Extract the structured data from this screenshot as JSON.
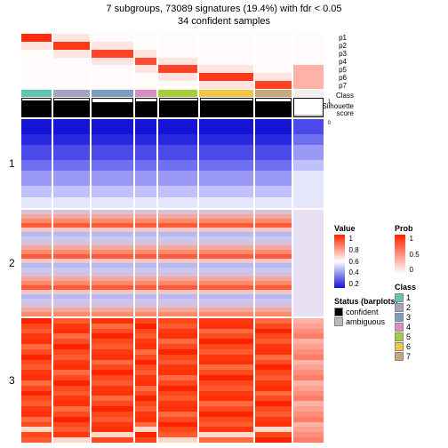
{
  "title": "7 subgroups, 73089 signatures (19.4%) with fdr < 0.05",
  "subtitle": "34 confident samples",
  "p_labels": [
    "p1",
    "p2",
    "p3",
    "p4",
    "p5",
    "p6",
    "p7"
  ],
  "class_label": "Class",
  "sil_label_1": "Silhouette",
  "sil_label_2": "score",
  "sil_ticks": [
    "1",
    "0"
  ],
  "row_labels": [
    "1",
    "2",
    "3"
  ],
  "n_groups": 7,
  "group_widths": [
    1,
    1.2,
    1.4,
    0.7,
    1.3,
    1.8,
    1.2,
    1
  ],
  "class_colors": [
    "#5fc6b0",
    "#a3a3c2",
    "#7a9ec2",
    "#d98fc2",
    "#a6ce39",
    "#f2c744",
    "#c9a87a",
    "#f0f0f0"
  ],
  "prob_diag_intensity": [
    0.95,
    0.9,
    0.85,
    0.8,
    0.85,
    0.9,
    0.85
  ],
  "sil_heights": [
    0.9,
    0.88,
    0.82,
    0.85,
    0.92,
    0.9,
    0.86,
    0.1
  ],
  "sil_colors": [
    "#000",
    "#000",
    "#000",
    "#000",
    "#000",
    "#000",
    "#000",
    "#bbb"
  ],
  "heat1_colors": [
    "#1414d4",
    "#2828e0",
    "#4a4ae8",
    "#6e6ef0",
    "#9a9af6",
    "#c0c0fa",
    "#e6e6fd"
  ],
  "heat2_colors": [
    "#ff5a3a",
    "#ff8a6a",
    "#f0a8a0",
    "#d8c0d8",
    "#c8c8f0",
    "#b8b8f4",
    "#f4c8c0"
  ],
  "heat3_colors": [
    "#ff2200",
    "#ff3810",
    "#ff4a20",
    "#ff5a30",
    "#ff6a40",
    "#ff4818",
    "#ff3008"
  ],
  "heat_heights": [
    100,
    120,
    140
  ],
  "value_legend": {
    "title": "Value",
    "stops": [
      "#ff2200",
      "#ffffff",
      "#1414d4"
    ],
    "labels": [
      "1",
      "0.8",
      "0.6",
      "0.4",
      "0.2"
    ]
  },
  "prob_legend": {
    "title": "Prob",
    "stops": [
      "#ff2200",
      "#ffffff"
    ],
    "labels": [
      "1",
      "0.5",
      "0"
    ]
  },
  "status_legend": {
    "title": "Status (barplots)",
    "items": [
      {
        "label": "confident",
        "color": "#000000"
      },
      {
        "label": "ambiguous",
        "color": "#bbbbbb"
      }
    ]
  },
  "class_legend": {
    "title": "Class",
    "items": [
      {
        "label": "1",
        "color": "#5fc6b0"
      },
      {
        "label": "2",
        "color": "#a3a3c2"
      },
      {
        "label": "3",
        "color": "#7a9ec2"
      },
      {
        "label": "4",
        "color": "#d98fc2"
      },
      {
        "label": "5",
        "color": "#a6ce39"
      },
      {
        "label": "6",
        "color": "#f2c744"
      },
      {
        "label": "7",
        "color": "#c9a87a"
      }
    ]
  }
}
